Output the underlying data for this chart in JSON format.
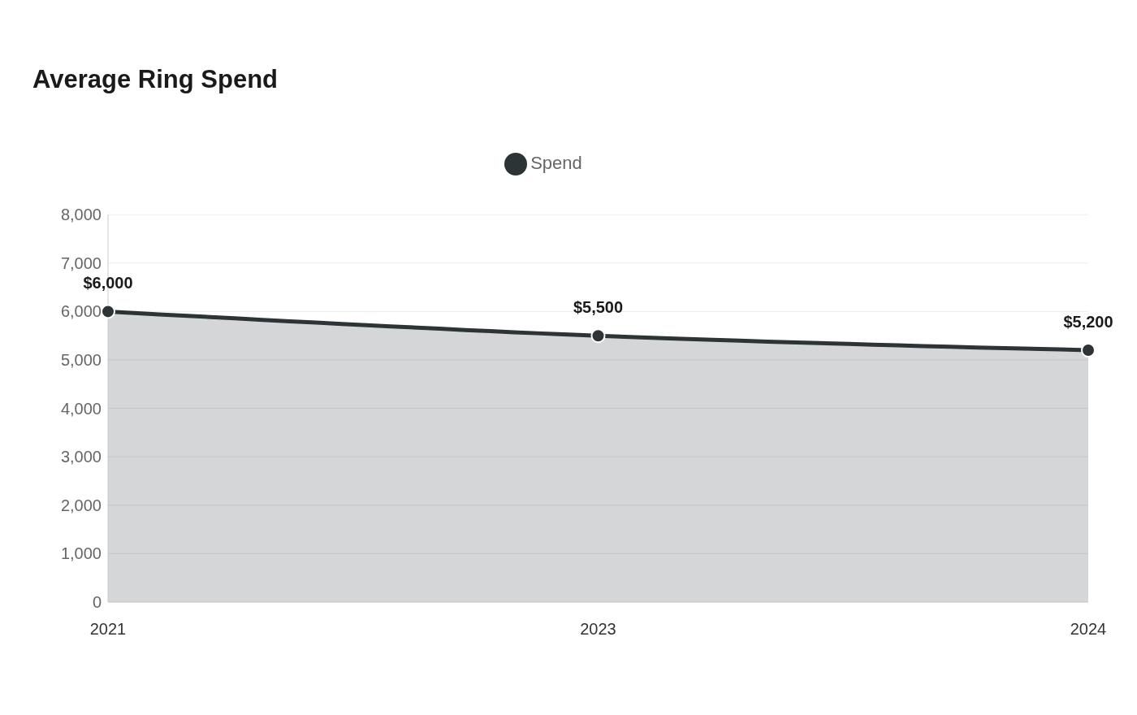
{
  "chart_data": {
    "type": "area",
    "title": "Average Ring Spend",
    "categories": [
      "2021",
      "2023",
      "2024"
    ],
    "series": [
      {
        "name": "Spend",
        "color": "#2d3436",
        "values": [
          6000,
          5500,
          5200
        ],
        "value_labels": [
          "$6,000",
          "$5,500",
          "$5,200"
        ]
      }
    ],
    "ylim": [
      0,
      8000
    ],
    "yticks": [
      0,
      {
        "value": 1000,
        "label": "1,000"
      },
      {
        "value": 2000,
        "label": "2,000"
      },
      {
        "value": 3000,
        "label": "3,000"
      },
      {
        "value": 4000,
        "label": "4,000"
      },
      {
        "value": 5000,
        "label": "5,000"
      },
      {
        "value": 6000,
        "label": "6,000"
      },
      {
        "value": 7000,
        "label": "7,000"
      },
      {
        "value": 8000,
        "label": "8,000"
      }
    ],
    "grid": "y",
    "legend": "top",
    "marker": "circle",
    "line_style": "solid"
  }
}
